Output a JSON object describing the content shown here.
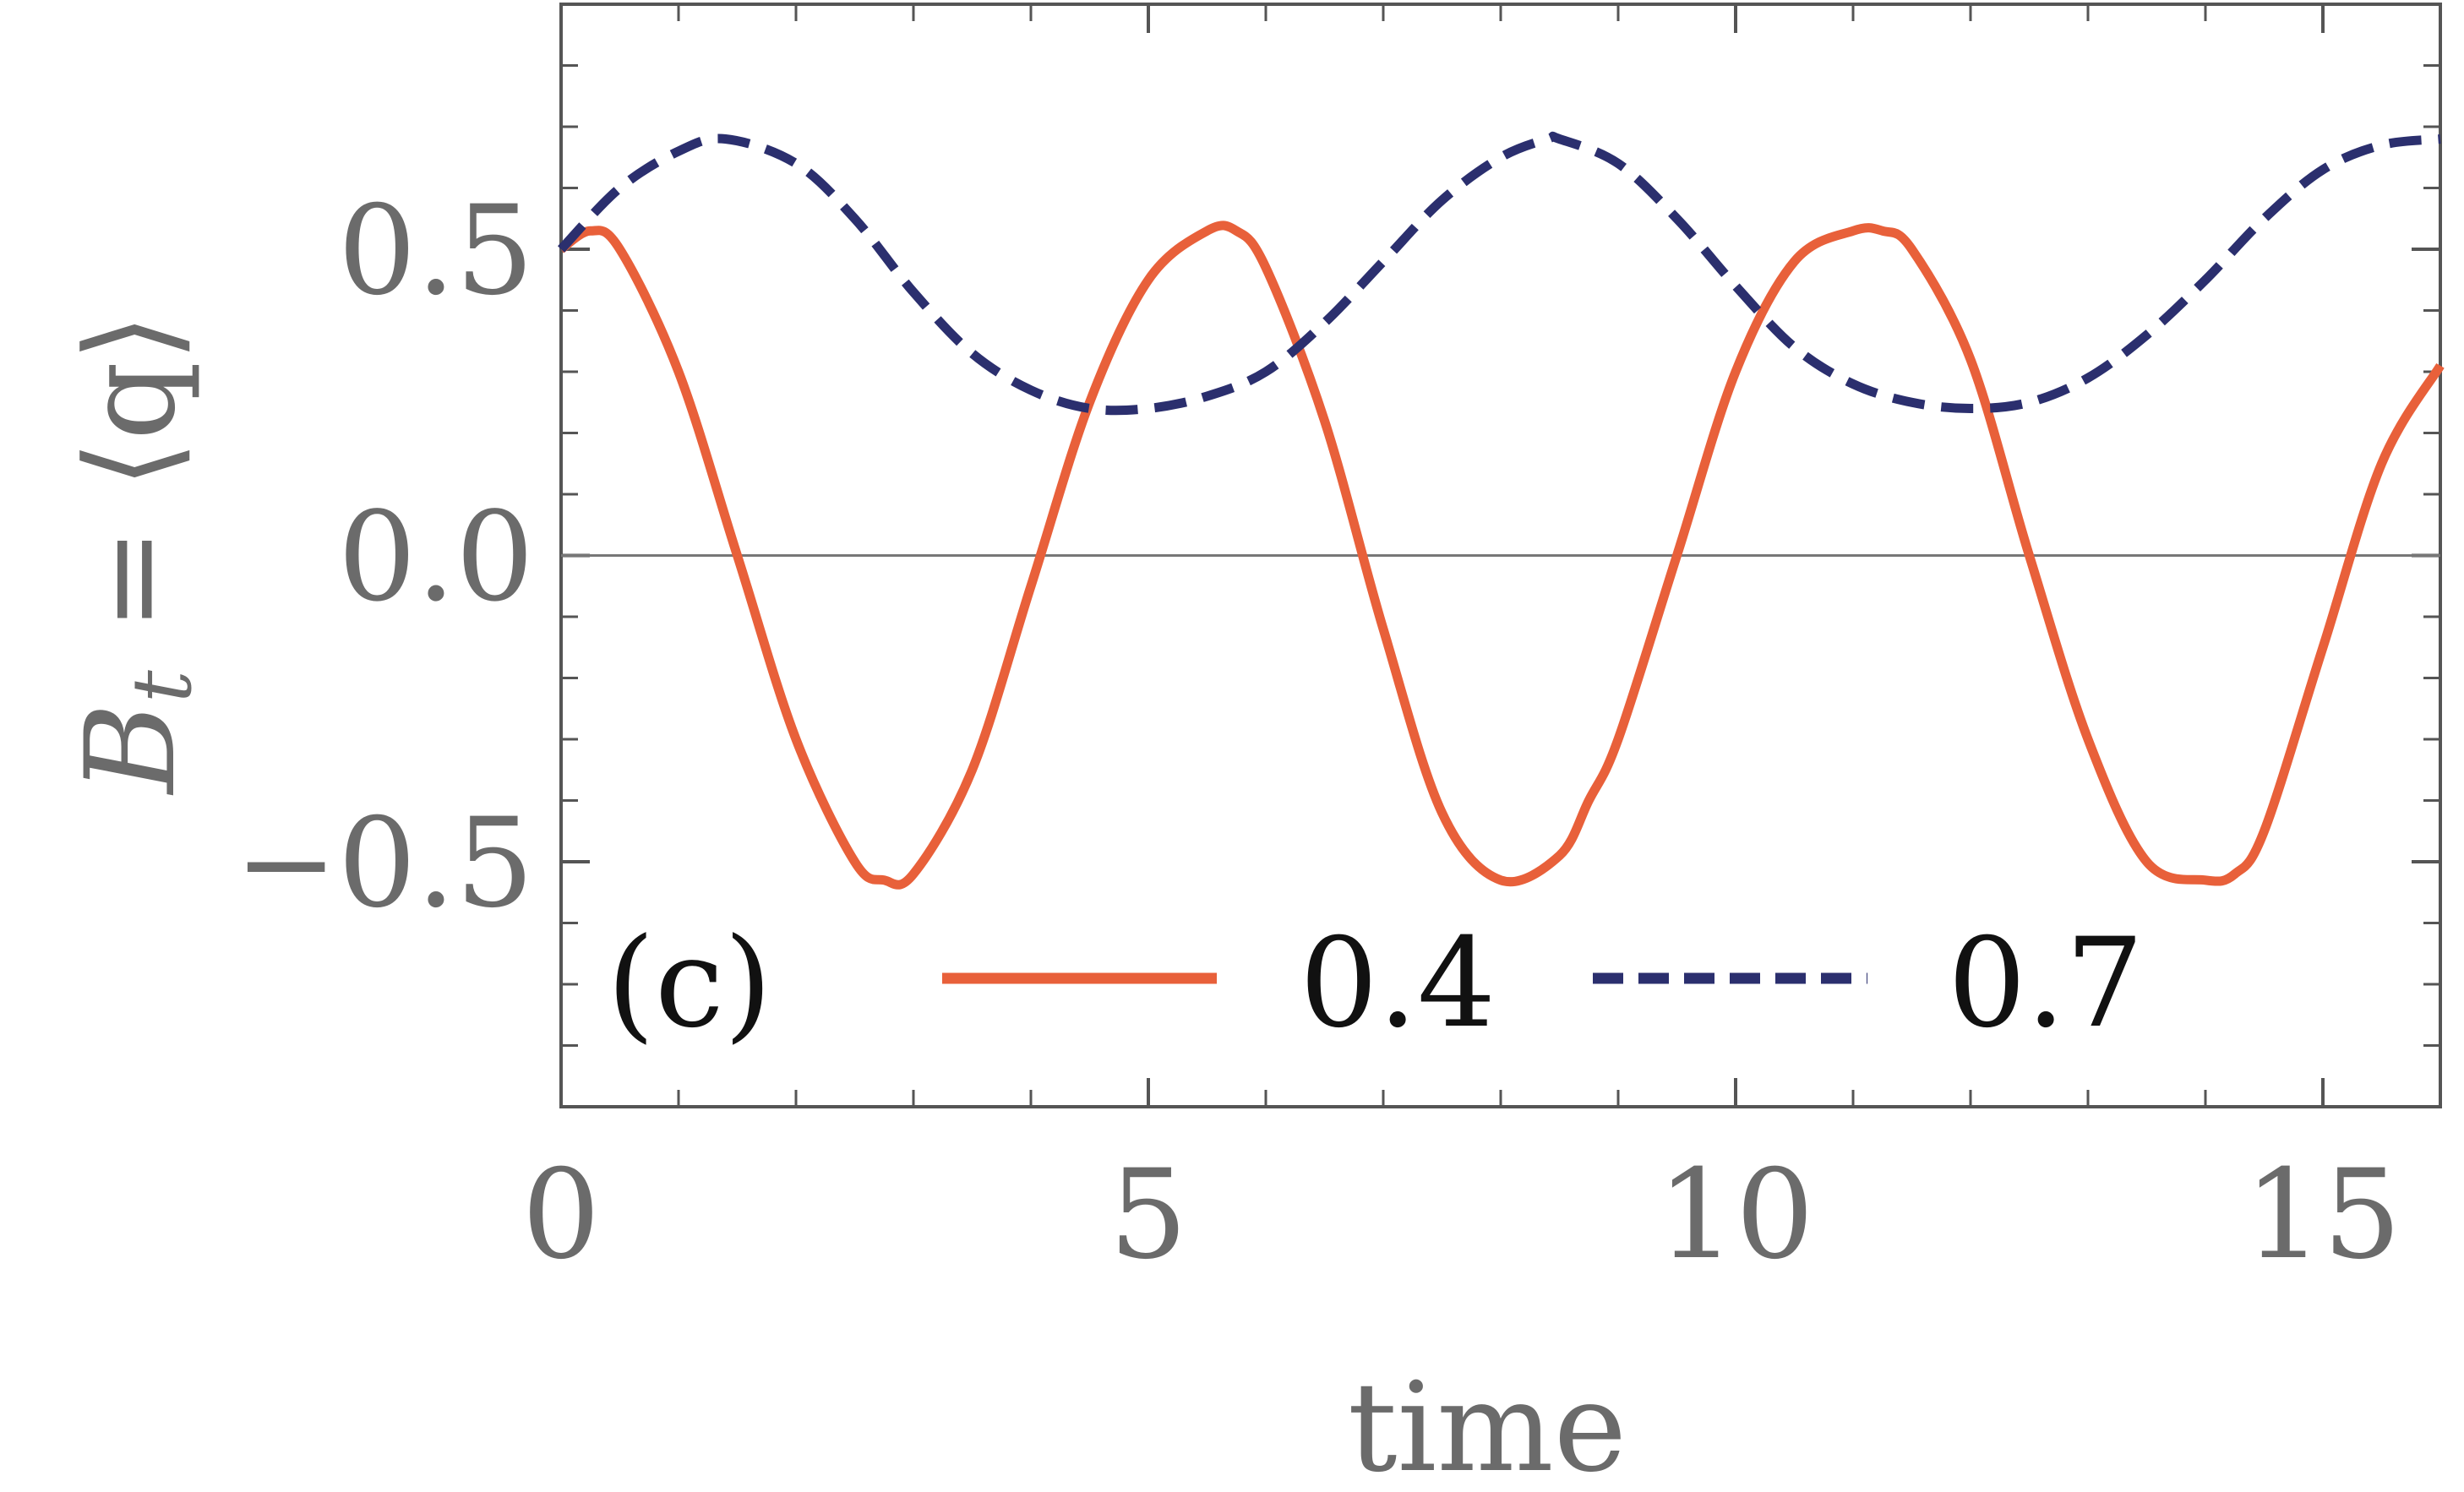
{
  "chart_data": {
    "type": "line",
    "panel_label": "(c)",
    "xlabel": "time",
    "ylabel_main": "B",
    "ylabel_sub": "t",
    "ylabel_rest": " = ⟨q⟩",
    "xlim": [
      0,
      16
    ],
    "ylim": [
      -0.9,
      0.9
    ],
    "x_ticks": [
      0,
      5,
      10,
      15
    ],
    "x_tick_labels": [
      "0",
      "5",
      "10",
      "15"
    ],
    "y_ticks": [
      -0.5,
      0.0,
      0.5
    ],
    "y_tick_labels": [
      "−0.5",
      "0.0",
      "0.5"
    ],
    "grid": false,
    "zero_line": true,
    "legend_position": "bottom",
    "series": [
      {
        "name": "0.4",
        "color": "#e8603a",
        "dash": "solid",
        "x": [
          0,
          0.25,
          0.5,
          1,
          1.5,
          2,
          2.5,
          2.75,
          3,
          3.5,
          4,
          4.5,
          5,
          5.5,
          5.75,
          6,
          6.5,
          7,
          7.5,
          8,
          8.5,
          8.75,
          9,
          9.5,
          10,
          10.5,
          11,
          11.25,
          11.5,
          12,
          12.5,
          13,
          13.5,
          14,
          14.25,
          14.5,
          15,
          15.5,
          16
        ],
        "y": [
          0.5,
          0.53,
          0.5,
          0.3,
          0.0,
          -0.3,
          -0.5,
          -0.53,
          -0.52,
          -0.35,
          -0.05,
          0.25,
          0.45,
          0.53,
          0.53,
          0.47,
          0.22,
          -0.12,
          -0.42,
          -0.53,
          -0.49,
          -0.4,
          -0.3,
          0.0,
          0.3,
          0.48,
          0.53,
          0.53,
          0.5,
          0.32,
          0.0,
          -0.3,
          -0.5,
          -0.53,
          -0.52,
          -0.45,
          -0.15,
          0.15,
          0.31
        ]
      },
      {
        "name": "0.7",
        "color": "#2b2f6e",
        "dash": "dashed",
        "x": [
          0,
          0.5,
          1,
          1.4,
          2,
          2.5,
          3,
          3.5,
          4,
          4.5,
          5,
          5.5,
          6,
          6.5,
          7,
          7.5,
          8,
          8.4,
          8.5,
          9,
          9.5,
          10,
          10.5,
          11,
          11.5,
          12,
          12.5,
          13,
          13.5,
          14,
          14.5,
          15,
          15.5,
          16
        ],
        "y": [
          0.5,
          0.6,
          0.66,
          0.68,
          0.64,
          0.55,
          0.43,
          0.33,
          0.27,
          0.24,
          0.24,
          0.26,
          0.3,
          0.38,
          0.48,
          0.58,
          0.65,
          0.68,
          0.68,
          0.64,
          0.55,
          0.44,
          0.34,
          0.28,
          0.25,
          0.24,
          0.25,
          0.29,
          0.36,
          0.45,
          0.55,
          0.63,
          0.67,
          0.68
        ]
      }
    ]
  }
}
